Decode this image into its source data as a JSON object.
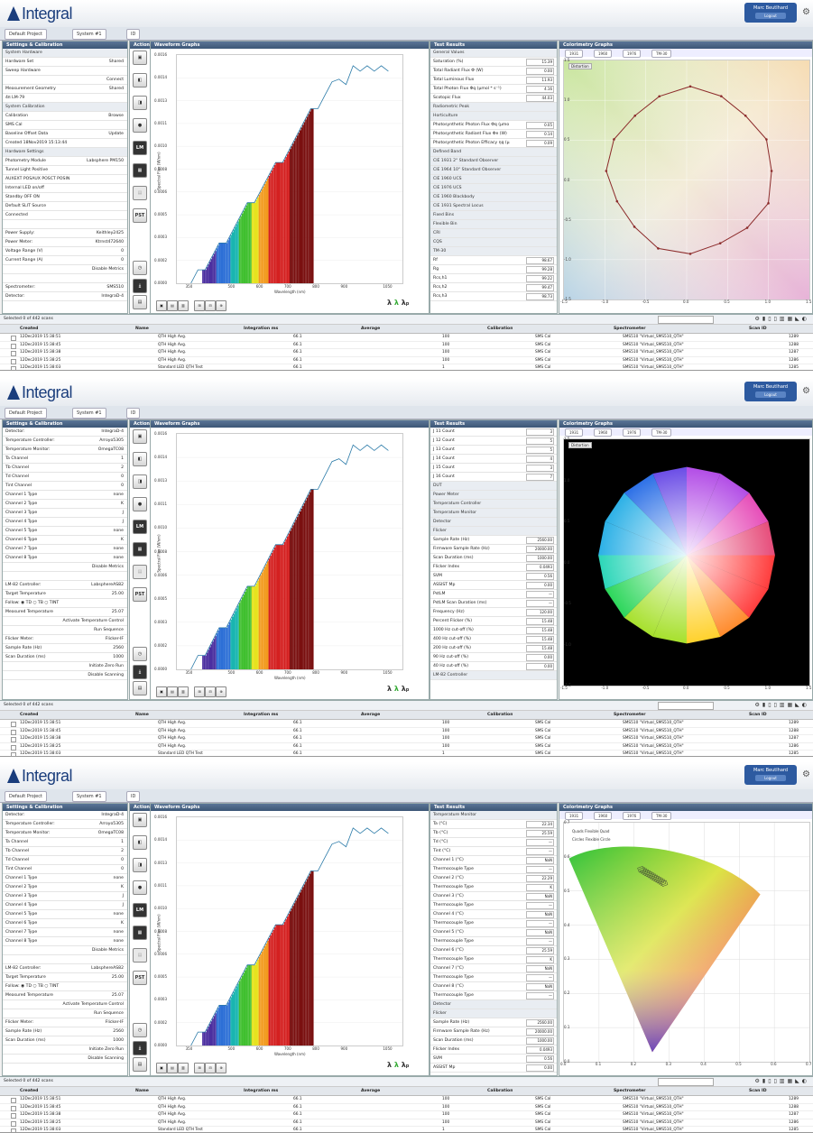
{
  "app": {
    "logo": "Integral",
    "user": "Marc Beutlhard",
    "logout": "Logout"
  },
  "tabs": [
    "Default Project",
    "System #1",
    "ID"
  ],
  "panels": {
    "settings": "Settings & Calibration",
    "actions": "Actions",
    "waveform": "Waveform Graphs",
    "results": "Test Results",
    "colorimetry": "Colorimetry Graphs"
  },
  "waveform": {
    "y_ticks": [
      "0.0016",
      "0.0014",
      "0.0013",
      "0.0011",
      "0.0010",
      "0.0008",
      "0.0006",
      "0.0005",
      "0.0003",
      "0.0002",
      "0.0000"
    ],
    "x_ticks": [
      "350",
      "500",
      "600",
      "700",
      "800",
      "900",
      "1050"
    ],
    "ylabel": "Spectral Flux (W/nm)",
    "xlabel": "Wavelength (nm)"
  },
  "chart_data": {
    "type": "bar",
    "x": [
      350,
      375,
      400,
      425,
      450,
      475,
      500,
      525,
      550,
      575,
      600,
      625,
      650,
      675,
      700,
      725,
      750,
      775,
      800,
      825,
      850,
      875,
      900,
      925,
      950,
      975,
      1000,
      1025,
      1050
    ],
    "y": [
      0.0,
      0.0001,
      0.0001,
      0.0002,
      0.0003,
      0.0003,
      0.0004,
      0.0005,
      0.0006,
      0.0006,
      0.0007,
      0.0008,
      0.0009,
      0.0009,
      0.001,
      0.0011,
      0.0012,
      0.0013,
      0.0013,
      0.0014,
      0.0015,
      0.0015,
      0.0015,
      0.0016,
      0.0016,
      0.0016,
      0.0016,
      0.0016,
      0.0016
    ],
    "xlabel": "Wavelength (nm)",
    "ylabel": "Spectral Flux (W/nm)",
    "xlim": [
      300,
      1100
    ],
    "ylim": [
      0,
      0.0017
    ]
  },
  "colorimetry": {
    "tabs": [
      "1931",
      "1960",
      "1976",
      "TM-30"
    ],
    "check": "Distortion",
    "quad": "Quads",
    "flex_quad": "Flexible Quad",
    "circ": "Circles",
    "flex_circ": "Flexible Circle",
    "x_ticks": [
      "-1.5",
      "-1.0",
      "-0.5",
      "0.0",
      "0.5",
      "1.0",
      "1.5"
    ],
    "y_ticks": [
      "1.5",
      "1.0",
      "0.5",
      "0.0",
      "-0.5",
      "-1.0",
      "-1.5"
    ],
    "uv_x": [
      "0.0",
      "0.1",
      "0.2",
      "0.3",
      "0.4",
      "0.5",
      "0.6",
      "0.7"
    ],
    "uv_y": [
      "0.7",
      "0.6",
      "0.5",
      "0.4",
      "0.3",
      "0.2",
      "0.1",
      "0.0"
    ]
  },
  "shot1": {
    "settings": [
      {
        "t": "System Hardware",
        "s": true
      },
      {
        "t": "Hardware Set",
        "v": "Shared"
      },
      {
        "t": "Sweep Hardware"
      },
      {
        "t": "",
        "v": "Connect"
      },
      {
        "t": "Measurement Geometry",
        "v": "Shared"
      },
      {
        "t": "4π LM-79"
      },
      {
        "t": "System Calibration",
        "s": true
      },
      {
        "t": "Calibration",
        "v": "Browse"
      },
      {
        "t": "SMS Cal"
      },
      {
        "t": "Baseline Offset Data",
        "v": "Update"
      },
      {
        "t": "Created 18Nov2019 15:13:44"
      },
      {
        "t": "Hardware Settings",
        "s": true
      },
      {
        "t": "Photometry Module",
        "v": "Labsphere PM150"
      },
      {
        "t": "Tunnel Light Positive"
      },
      {
        "t": "AUXEXT   POSAUX   POSCT   POSIN"
      },
      {
        "t": "Internal LED on/off"
      },
      {
        "t": "Standby   OFF   ON"
      },
      {
        "t": "Default SLIT Source"
      },
      {
        "t": "Connected"
      },
      {
        "t": ""
      },
      {
        "t": "Power Supply:",
        "v": "Keithley2425"
      },
      {
        "t": "Power Meter:",
        "v": "Ktrnst472640"
      },
      {
        "t": "Voltage Range (V)",
        "v": "0"
      },
      {
        "t": "Current Range (A)",
        "v": "0"
      },
      {
        "t": "",
        "v": "Disable Metrics"
      },
      {
        "t": ""
      },
      {
        "t": "Spectrometer:",
        "v": "SMS510"
      },
      {
        "t": "Detector:",
        "v": "IntegraD-4"
      }
    ],
    "results": [
      {
        "t": "General Values",
        "s": true
      },
      {
        "t": "Saturation (%)",
        "v": "15.39"
      },
      {
        "t": "Total Radiant Flux Φ (W)",
        "v": "0.00"
      },
      {
        "t": "Total Luminous Flux",
        "v": "11.93"
      },
      {
        "t": "Total Photon Flux Φq (µmol * s⁻¹)",
        "v": "4.16"
      },
      {
        "t": "Scotopic Flux",
        "v": "44.03"
      },
      {
        "t": "Radiometric Peak",
        "s": true
      },
      {
        "t": "Horticulture",
        "s": true
      },
      {
        "t": "Photosynthetic Photon Flux Φq (µmo",
        "v": "0.05"
      },
      {
        "t": "Photosynthetic Radiant Flux Φe (W)",
        "v": "0.14"
      },
      {
        "t": "Photosynthetic Photon Efficacy ηq (µ",
        "v": "0.09"
      },
      {
        "t": "Defined Band",
        "s": true
      },
      {
        "t": "CIE 1931 2° Standard Observer",
        "s": true
      },
      {
        "t": "CIE 1964 10° Standard Observer",
        "s": true
      },
      {
        "t": "CIE 1960 UCS",
        "s": true
      },
      {
        "t": "CIE 1976 UCS",
        "s": true
      },
      {
        "t": "CIE 1960 Blackbody",
        "s": true
      },
      {
        "t": "CIE 1931 Spectral Locus",
        "s": true
      },
      {
        "t": "Fixed Bins",
        "s": true
      },
      {
        "t": "Flexible Bin",
        "s": true
      },
      {
        "t": "CRI",
        "s": true
      },
      {
        "t": "CQS",
        "s": true
      },
      {
        "t": "TM-30",
        "s": true
      },
      {
        "t": "Rf",
        "v": "98.67"
      },
      {
        "t": "Rg",
        "v": "99.28"
      },
      {
        "t": "Rcs,h1",
        "v": "99.22"
      },
      {
        "t": "Rcs,h2",
        "v": "99.47"
      },
      {
        "t": "Rcs,h3",
        "v": "98.73"
      }
    ]
  },
  "shot2": {
    "settings": [
      {
        "t": "Detector:",
        "v": "IntegraD-4"
      },
      {
        "t": "Temperature Controller:",
        "v": "Arroyo5305"
      },
      {
        "t": "Temperature Monitor:",
        "v": "OmegaTC08"
      },
      {
        "t": "Ta Channel",
        "v": "1"
      },
      {
        "t": "Tb Channel",
        "v": "2"
      },
      {
        "t": "Td Channel",
        "v": "0"
      },
      {
        "t": "Tint Channel",
        "v": "0"
      },
      {
        "t": "Channel 1 Type",
        "v": "none"
      },
      {
        "t": "Channel 2 Type",
        "v": "K"
      },
      {
        "t": "Channel 3 Type",
        "v": "J"
      },
      {
        "t": "Channel 4 Type",
        "v": "J"
      },
      {
        "t": "Channel 5 Type",
        "v": "none"
      },
      {
        "t": "Channel 6 Type",
        "v": "K"
      },
      {
        "t": "Channel 7 Type",
        "v": "none"
      },
      {
        "t": "Channel 8 Type",
        "v": "none"
      },
      {
        "t": "",
        "v": "Disable Metrics"
      },
      {
        "t": ""
      },
      {
        "t": "LM-82 Controller:",
        "v": "LabsphereAS82"
      },
      {
        "t": "Target Temperature",
        "v": "25.00"
      },
      {
        "t": "Follow: ◉ TD ○ TB ○ TINT"
      },
      {
        "t": "Measured Temperature",
        "v": "25.07"
      },
      {
        "t": "",
        "v": "Activate Temperature Control"
      },
      {
        "t": "",
        "v": "Run Sequence"
      },
      {
        "t": "Flicker Meter:",
        "v": "Flicker-IF"
      },
      {
        "t": "Sample Rate (Hz)",
        "v": "2560"
      },
      {
        "t": "Scan Duration (ms)",
        "v": "1000"
      },
      {
        "t": "",
        "v": "Initiate Zero Run"
      },
      {
        "t": "",
        "v": "Disable Scanning"
      }
    ],
    "results": [
      {
        "t": "J 11 Count",
        "v": "3"
      },
      {
        "t": "J 12 Count",
        "v": "5"
      },
      {
        "t": "J 13 Count",
        "v": "5"
      },
      {
        "t": "J 14 Count",
        "v": "4"
      },
      {
        "t": "J 15 Count",
        "v": "3"
      },
      {
        "t": "J 16 Count",
        "v": "7"
      },
      {
        "t": "DUT",
        "s": true
      },
      {
        "t": "Power Meter",
        "s": true
      },
      {
        "t": "Temperature Controller",
        "s": true
      },
      {
        "t": "Temperature Monitor",
        "s": true
      },
      {
        "t": "Detector",
        "s": true
      },
      {
        "t": "Flicker",
        "s": true
      },
      {
        "t": "Sample Rate (Hz)",
        "v": "2560.00"
      },
      {
        "t": "Firmware Sample Rate (Hz)",
        "v": "20000.00"
      },
      {
        "t": "Scan Duration (ms)",
        "v": "1000.00"
      },
      {
        "t": "Flicker Index",
        "v": "0.0493"
      },
      {
        "t": "SVM",
        "v": "0.56"
      },
      {
        "t": "ASSIST Mp",
        "v": "0.00"
      },
      {
        "t": "PstLM",
        "v": "—"
      },
      {
        "t": "PstLM Scan Duration (ms)",
        "v": "—"
      },
      {
        "t": "Frequency (Hz)",
        "v": "120.00"
      },
      {
        "t": "Percent Flicker (%)",
        "v": "15.48"
      },
      {
        "t": "1000 Hz cut-off (%)",
        "v": "15.48"
      },
      {
        "t": "400 Hz cut-off (%)",
        "v": "15.48"
      },
      {
        "t": "200 Hz cut-off (%)",
        "v": "15.48"
      },
      {
        "t": "90 Hz cut-off (%)",
        "v": "0.00"
      },
      {
        "t": "40 Hz cut-off (%)",
        "v": "0.00"
      },
      {
        "t": "LM-82 Controller",
        "s": true
      }
    ]
  },
  "shot3": {
    "results": [
      {
        "t": "Temperature Monitor",
        "s": true
      },
      {
        "t": "Ta (°C)",
        "v": "22.34"
      },
      {
        "t": "Tb (°C)",
        "v": "25.59"
      },
      {
        "t": "Td (°C)",
        "v": "—"
      },
      {
        "t": "Tint (°C)",
        "v": "—"
      },
      {
        "t": "Channel 1 (°C)",
        "v": "NaN"
      },
      {
        "t": "Thermocouple Type",
        "v": "—"
      },
      {
        "t": "Channel 2 (°C)",
        "v": "22.29"
      },
      {
        "t": "Thermocouple Type",
        "v": "K"
      },
      {
        "t": "Channel 3 (°C)",
        "v": "NaN"
      },
      {
        "t": "Thermocouple Type",
        "v": "—"
      },
      {
        "t": "Channel 4 (°C)",
        "v": "NaN"
      },
      {
        "t": "Thermocouple Type",
        "v": "—"
      },
      {
        "t": "Channel 5 (°C)",
        "v": "NaN"
      },
      {
        "t": "Thermocouple Type",
        "v": "—"
      },
      {
        "t": "Channel 6 (°C)",
        "v": "25.59"
      },
      {
        "t": "Thermocouple Type",
        "v": "K"
      },
      {
        "t": "Channel 7 (°C)",
        "v": "NaN"
      },
      {
        "t": "Thermocouple Type",
        "v": "—"
      },
      {
        "t": "Channel 8 (°C)",
        "v": "NaN"
      },
      {
        "t": "Thermocouple Type",
        "v": "—"
      },
      {
        "t": "Detector",
        "s": true
      },
      {
        "t": "Flicker",
        "s": true
      },
      {
        "t": "Sample Rate (Hz)",
        "v": "2560.00"
      },
      {
        "t": "Firmware Sample Rate (Hz)",
        "v": "20000.00"
      },
      {
        "t": "Scan Duration (ms)",
        "v": "1000.00"
      },
      {
        "t": "Flicker Index",
        "v": "0.0493"
      },
      {
        "t": "SVM",
        "v": "0.56"
      },
      {
        "t": "ASSIST Mp",
        "v": "0.00"
      }
    ]
  },
  "table": {
    "selected": "Selected 0 of 442 scans",
    "cols": [
      "Created",
      "Name",
      "Integration ms",
      "Average",
      "Calibration",
      "Spectrometer",
      "Scan ID"
    ],
    "rows": [
      [
        "12Dec2019 15:38:51",
        "QTH High Avg.",
        "66.1",
        "100",
        "SMS Cal",
        "SMS510 \"Virtual_SMS510_QTH\"",
        "1289"
      ],
      [
        "12Dec2019 15:38:45",
        "QTH High Avg.",
        "66.1",
        "100",
        "SMS Cal",
        "SMS510 \"Virtual_SMS510_QTH\"",
        "1288"
      ],
      [
        "12Dec2019 15:38:38",
        "QTH High Avg.",
        "66.1",
        "100",
        "SMS Cal",
        "SMS510 \"Virtual_SMS510_QTH\"",
        "1287"
      ],
      [
        "12Dec2019 15:38:25",
        "QTH High Avg.",
        "66.1",
        "100",
        "SMS Cal",
        "SMS510 \"Virtual_SMS510_QTH\"",
        "1286"
      ],
      [
        "12Dec2019 15:38:03",
        "Standard LED QTH Test",
        "66.1",
        "1",
        "SMS Cal",
        "SMS510 \"Virtual_SMS510_QTH\"",
        "1285"
      ]
    ]
  }
}
